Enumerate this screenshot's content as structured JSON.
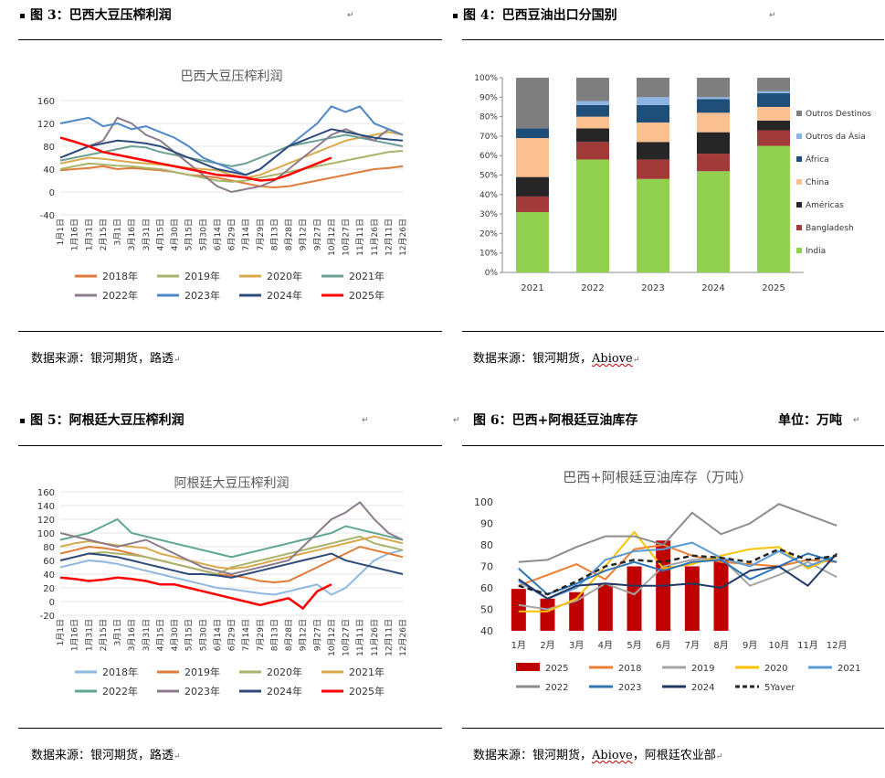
{
  "panels": {
    "fig3": {
      "title": "图 3：巴西大豆压榨利润",
      "source": "数据来源：银河期货，路透"
    },
    "fig4": {
      "title": "图 4：巴西豆油出口分国别",
      "source_prefix": "数据来源：银河期货，",
      "source_link": "Abiove"
    },
    "fig5": {
      "title": "图 5：阿根廷大豆压榨利润",
      "source": "数据来源：银河期货，路透"
    },
    "fig6": {
      "title": "图 6：巴西+阿根廷豆油库存",
      "unit": "单位：万吨",
      "source_prefix": "数据来源：银河期货，",
      "source_link": "Abiove",
      "source_suffix": "，阿根廷农业部"
    }
  },
  "colors": {
    "y2018": "#ed7d31",
    "y2019": "#a5a5a5",
    "y2020": "#ffc000",
    "y2021": "#5b9bd5",
    "y2022": "#70ad47",
    "y2023": "#264478",
    "y2024": "#9e480e",
    "y2025": "#ff0000"
  },
  "chart_data": [
    {
      "type": "line",
      "title": "巴西大豆压榨利润",
      "ylim": [
        -40,
        160
      ],
      "yticks": [
        -40,
        0,
        40,
        80,
        120,
        160
      ],
      "categories": [
        "1月1日",
        "1月16日",
        "1月31日",
        "2月15日",
        "3月1日",
        "3月16日",
        "3月31日",
        "4月15日",
        "4月30日",
        "5月15日",
        "5月30日",
        "6月14日",
        "6月29日",
        "7月14日",
        "7月29日",
        "8月13日",
        "8月28日",
        "9月12日",
        "9月27日",
        "10月12日",
        "10月27日",
        "11月11日",
        "11月26日",
        "12月11日",
        "12月26日"
      ],
      "series": [
        {
          "name": "2018年",
          "color": "#e07b39",
          "values": [
            38,
            40,
            42,
            45,
            40,
            42,
            40,
            38,
            35,
            30,
            28,
            25,
            20,
            15,
            10,
            8,
            10,
            15,
            20,
            25,
            30,
            35,
            40,
            42,
            45
          ]
        },
        {
          "name": "2019年",
          "color": "#a9b36a",
          "values": [
            40,
            45,
            50,
            48,
            46,
            45,
            42,
            40,
            35,
            30,
            25,
            20,
            18,
            20,
            25,
            30,
            35,
            40,
            45,
            50,
            55,
            60,
            65,
            70,
            72
          ]
        },
        {
          "name": "2020年",
          "color": "#d9a84a",
          "values": [
            50,
            55,
            60,
            58,
            55,
            52,
            50,
            48,
            45,
            42,
            40,
            38,
            30,
            25,
            30,
            40,
            50,
            60,
            70,
            80,
            90,
            95,
            100,
            105,
            100
          ]
        },
        {
          "name": "2021年",
          "color": "#6b9f92",
          "values": [
            55,
            60,
            65,
            70,
            75,
            80,
            78,
            70,
            65,
            60,
            55,
            50,
            45,
            50,
            60,
            70,
            80,
            85,
            90,
            95,
            100,
            95,
            90,
            85,
            80
          ]
        },
        {
          "name": "2022年",
          "color": "#8c7b8b",
          "values": [
            60,
            70,
            80,
            90,
            130,
            120,
            100,
            90,
            70,
            50,
            30,
            10,
            0,
            5,
            10,
            20,
            40,
            60,
            80,
            100,
            110,
            100,
            90,
            110,
            100
          ]
        },
        {
          "name": "2023年",
          "color": "#4f87c7",
          "values": [
            120,
            125,
            130,
            115,
            120,
            110,
            115,
            105,
            95,
            80,
            60,
            50,
            40,
            30,
            40,
            60,
            80,
            100,
            120,
            150,
            140,
            150,
            120,
            110,
            100
          ]
        },
        {
          "name": "2024年",
          "color": "#2c4a7a",
          "values": [
            60,
            70,
            80,
            85,
            90,
            88,
            85,
            80,
            70,
            60,
            50,
            40,
            35,
            30,
            40,
            60,
            80,
            90,
            100,
            110,
            105,
            100,
            95,
            92,
            90
          ]
        },
        {
          "name": "2025年",
          "color": "#ff0000",
          "values": [
            95,
            88,
            80,
            70,
            65,
            60,
            55,
            50,
            45,
            40,
            35,
            30,
            28,
            25,
            20,
            22,
            30,
            40,
            50,
            60,
            null,
            null,
            null,
            null,
            null
          ]
        }
      ]
    },
    {
      "type": "bar",
      "title": "巴西豆油出口分国别",
      "ylim": [
        0,
        100
      ],
      "yticks": [
        "0%",
        "10%",
        "20%",
        "30%",
        "40%",
        "50%",
        "60%",
        "70%",
        "80%",
        "90%",
        "100%"
      ],
      "categories": [
        "2021",
        "2022",
        "2023",
        "2024",
        "2025"
      ],
      "series": [
        {
          "name": "India",
          "color": "#92d050",
          "values": [
            31,
            58,
            48,
            52,
            65
          ]
        },
        {
          "name": "Bangladesh",
          "color": "#a33a3a",
          "values": [
            8,
            9,
            10,
            9,
            8
          ]
        },
        {
          "name": "Américas",
          "color": "#262626",
          "values": [
            10,
            7,
            9,
            11,
            5
          ]
        },
        {
          "name": "China",
          "color": "#fac090",
          "values": [
            20,
            6,
            10,
            10,
            7
          ]
        },
        {
          "name": "África",
          "color": "#1f4e79",
          "values": [
            5,
            6,
            9,
            7,
            7
          ]
        },
        {
          "name": "Outros da Ásia",
          "color": "#8eb4e3",
          "values": [
            0,
            2,
            4,
            1,
            1
          ]
        },
        {
          "name": "Outros Destinos",
          "color": "#7f7f7f",
          "values": [
            26,
            12,
            10,
            10,
            7
          ]
        }
      ]
    },
    {
      "type": "line",
      "title": "阿根廷大豆压榨利润",
      "ylim": [
        -20,
        160
      ],
      "yticks": [
        -20,
        0,
        20,
        40,
        60,
        80,
        100,
        120,
        140,
        160
      ],
      "categories": [
        "1月1日",
        "1月16日",
        "1月31日",
        "2月15日",
        "3月1日",
        "3月16日",
        "3月31日",
        "4月15日",
        "4月30日",
        "5月15日",
        "5月30日",
        "6月14日",
        "6月29日",
        "7月14日",
        "7月29日",
        "8月13日",
        "8月28日",
        "9月12日",
        "9月27日",
        "10月12日",
        "10月27日",
        "11月11日",
        "11月26日",
        "12月11日",
        "12月26日"
      ],
      "series": [
        {
          "name": "2018年",
          "color": "#8fb8e0",
          "values": [
            50,
            55,
            60,
            58,
            55,
            50,
            45,
            40,
            35,
            30,
            25,
            20,
            18,
            15,
            12,
            10,
            15,
            20,
            25,
            10,
            20,
            40,
            60,
            70,
            75
          ]
        },
        {
          "name": "2019年",
          "color": "#e07b39",
          "values": [
            70,
            75,
            80,
            78,
            75,
            70,
            65,
            60,
            55,
            50,
            45,
            40,
            38,
            35,
            30,
            28,
            30,
            40,
            50,
            60,
            70,
            80,
            75,
            70,
            65
          ]
        },
        {
          "name": "2020年",
          "color": "#a9b36a",
          "values": [
            60,
            65,
            70,
            72,
            70,
            68,
            65,
            60,
            55,
            50,
            45,
            40,
            50,
            55,
            60,
            65,
            70,
            75,
            80,
            85,
            90,
            95,
            85,
            80,
            75
          ]
        },
        {
          "name": "2021年",
          "color": "#d9a84a",
          "values": [
            80,
            85,
            88,
            85,
            82,
            80,
            78,
            70,
            65,
            60,
            55,
            50,
            48,
            50,
            55,
            60,
            65,
            70,
            75,
            80,
            85,
            90,
            95,
            90,
            85
          ]
        },
        {
          "name": "2022年",
          "color": "#5fa88f",
          "values": [
            90,
            95,
            100,
            110,
            120,
            100,
            95,
            90,
            85,
            80,
            75,
            70,
            65,
            70,
            75,
            80,
            85,
            90,
            95,
            100,
            110,
            105,
            100,
            95,
            90
          ]
        },
        {
          "name": "2023年",
          "color": "#8c7b8b",
          "values": [
            100,
            95,
            90,
            85,
            80,
            85,
            90,
            80,
            70,
            60,
            50,
            45,
            40,
            45,
            50,
            55,
            60,
            80,
            100,
            120,
            130,
            145,
            120,
            100,
            90
          ]
        },
        {
          "name": "2024年",
          "color": "#2c4a7a",
          "values": [
            60,
            65,
            70,
            68,
            65,
            60,
            55,
            50,
            45,
            40,
            40,
            38,
            35,
            40,
            45,
            50,
            55,
            60,
            65,
            70,
            60,
            55,
            50,
            45,
            40
          ]
        },
        {
          "name": "2025年",
          "color": "#ff0000",
          "values": [
            35,
            33,
            30,
            32,
            35,
            33,
            30,
            25,
            25,
            20,
            15,
            10,
            5,
            0,
            -5,
            0,
            5,
            -10,
            15,
            25,
            null,
            null,
            null,
            null,
            null
          ]
        }
      ]
    },
    {
      "type": "bar+line",
      "title": "巴西+阿根廷豆油库存（万吨）",
      "ylim": [
        40,
        100
      ],
      "yticks": [
        40,
        50,
        60,
        70,
        80,
        90,
        100
      ],
      "categories": [
        "1月",
        "2月",
        "3月",
        "4月",
        "5月",
        "6月",
        "7月",
        "8月",
        "9月",
        "10月",
        "11月",
        "12月"
      ],
      "series": [
        {
          "name": "2025",
          "color": "#c00000",
          "kind": "bar",
          "values": [
            59.5,
            55,
            58,
            61.5,
            70,
            82,
            70,
            73,
            null,
            null,
            null,
            null
          ]
        },
        {
          "name": "2018",
          "color": "#ed7d31",
          "kind": "line",
          "values": [
            61,
            66,
            71,
            64,
            78,
            80,
            75,
            72,
            71,
            70,
            73,
            72
          ]
        },
        {
          "name": "2019",
          "color": "#a5a5a5",
          "kind": "line",
          "values": [
            52,
            50,
            54,
            62,
            57,
            70,
            73,
            74,
            61,
            66,
            72,
            65
          ]
        },
        {
          "name": "2020",
          "color": "#ffc000",
          "kind": "line",
          "values": [
            49,
            49,
            55,
            70,
            86,
            69,
            71,
            75,
            78,
            79,
            69,
            75
          ]
        },
        {
          "name": "2021",
          "color": "#5b9bd5",
          "kind": "line",
          "values": [
            63,
            55,
            60,
            73,
            77,
            78,
            81,
            74,
            70,
            77,
            70,
            75
          ]
        },
        {
          "name": "2022",
          "color": "#8c8c8c",
          "kind": "line",
          "values": [
            72,
            73,
            79,
            84,
            84,
            80,
            95,
            85,
            90,
            99,
            94,
            89
          ]
        },
        {
          "name": "2023",
          "color": "#2e75b6",
          "kind": "line",
          "values": [
            69,
            57,
            62,
            68,
            72,
            68,
            72,
            73,
            64,
            70,
            76,
            72
          ]
        },
        {
          "name": "2024",
          "color": "#1f3864",
          "kind": "line",
          "values": [
            64,
            55,
            61,
            62,
            61,
            61,
            62,
            60,
            68,
            70,
            61,
            76
          ]
        },
        {
          "name": "5Yaver",
          "color": "#262626",
          "kind": "dash",
          "values": [
            61,
            57,
            63,
            70,
            73,
            72,
            75,
            74,
            72,
            78,
            73,
            75
          ]
        }
      ]
    }
  ]
}
